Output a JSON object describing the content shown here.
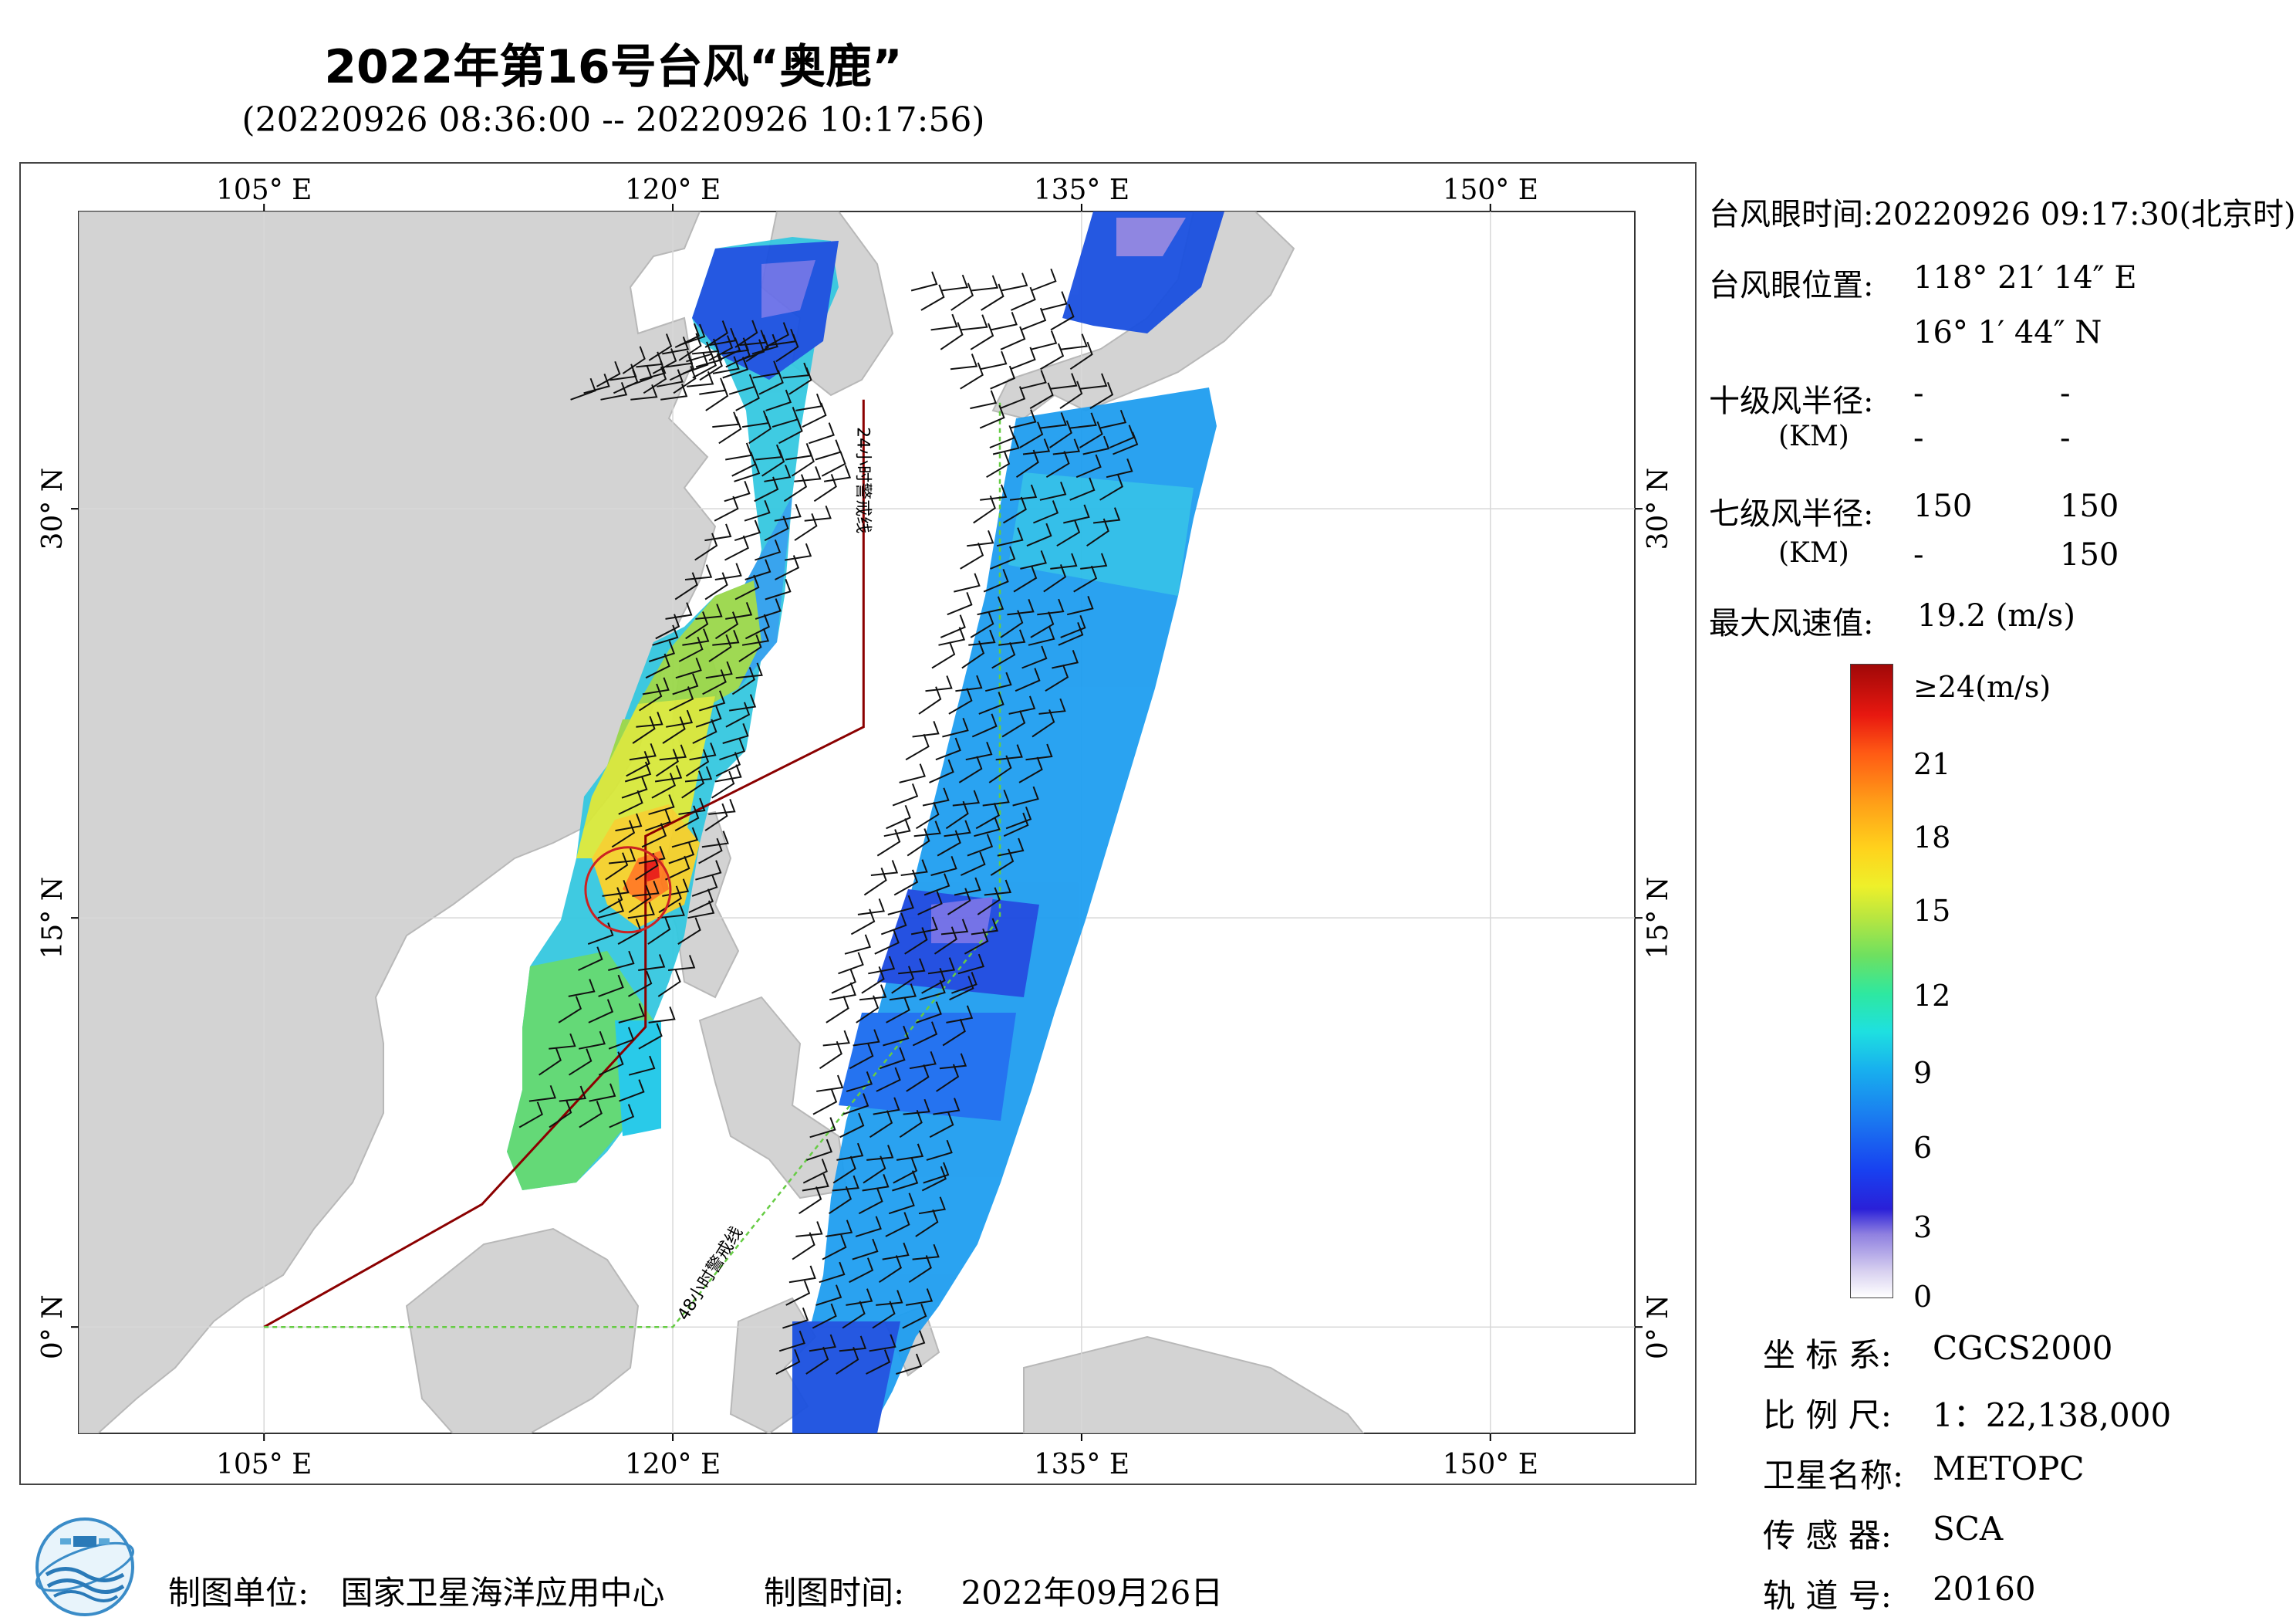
{
  "header": {
    "title": "2022年第16号台风“奥鹿”",
    "subtitle": "(20220926 08:36:00 -- 20220926 10:17:56)"
  },
  "map": {
    "lon_labels": [
      "105° E",
      "120° E",
      "135° E",
      "150° E"
    ],
    "lat_labels": [
      "30° N",
      "15° N",
      "0° N"
    ],
    "lon_values": [
      105,
      120,
      135,
      150
    ],
    "lat_values": [
      30,
      15,
      0
    ],
    "extent": {
      "lon_min": 98.2,
      "lon_max": 155.3,
      "lat_min": -3.9,
      "lat_max": 40.9
    },
    "warning_line_24h_label": "24小时警戒线",
    "warning_line_48h_label": "48小时警戒线",
    "warning_line_24h": [
      [
        105,
        0
      ],
      [
        113,
        4.5
      ],
      [
        119,
        11
      ],
      [
        119,
        18
      ],
      [
        127,
        22
      ],
      [
        127,
        34
      ]
    ],
    "warning_line_48h": [
      [
        105,
        0
      ],
      [
        120,
        0
      ],
      [
        132,
        15
      ],
      [
        132,
        34
      ]
    ],
    "typhoon_eye": {
      "lon": 118.354,
      "lat": 16.029
    },
    "colors": {
      "land": "#d3d3d3",
      "sea": "#ffffff",
      "warning_24h": "#8b0000",
      "warning_48h": "#66cc44",
      "eye_circle": "#cc2222"
    }
  },
  "typhoon_info": {
    "eye_time_label": "台风眼时间:",
    "eye_time_value": "20220926 09:17:30(北京时)",
    "eye_position_label": "台风眼位置:",
    "eye_lon": "118° 21′ 14″ E",
    "eye_lat": "16° 1′ 44″ N",
    "r10_label": "十级风半径:",
    "r10_unit": "(KM)",
    "r10_values": [
      "-",
      "-",
      "-",
      "-"
    ],
    "r7_label": "七级风半径:",
    "r7_unit": "(KM)",
    "r7_values": [
      "150",
      "150",
      "-",
      "150"
    ],
    "max_wind_label": "最大风速值:",
    "max_wind_value": "19.2  (m/s)"
  },
  "colorbar": {
    "labels": [
      "≥24(m/s)",
      "21",
      "18",
      "15",
      "12",
      "9",
      "6",
      "3",
      "0"
    ]
  },
  "metadata": {
    "coord_label": "坐 标 系:",
    "coord_value": "CGCS2000",
    "scale_label": "比 例 尺:",
    "scale_value": "1：22,138,000",
    "satellite_label": "卫星名称:",
    "satellite_value": "METOPC",
    "sensor_label": "传 感 器:",
    "sensor_value": "SCA",
    "orbit_label": "轨 道 号:",
    "orbit_value": "20160"
  },
  "footer": {
    "producer_label": "制图单位:",
    "producer_value": "国家卫星海洋应用中心",
    "date_label": "制图时间:",
    "date_value": "2022年09月26日"
  }
}
